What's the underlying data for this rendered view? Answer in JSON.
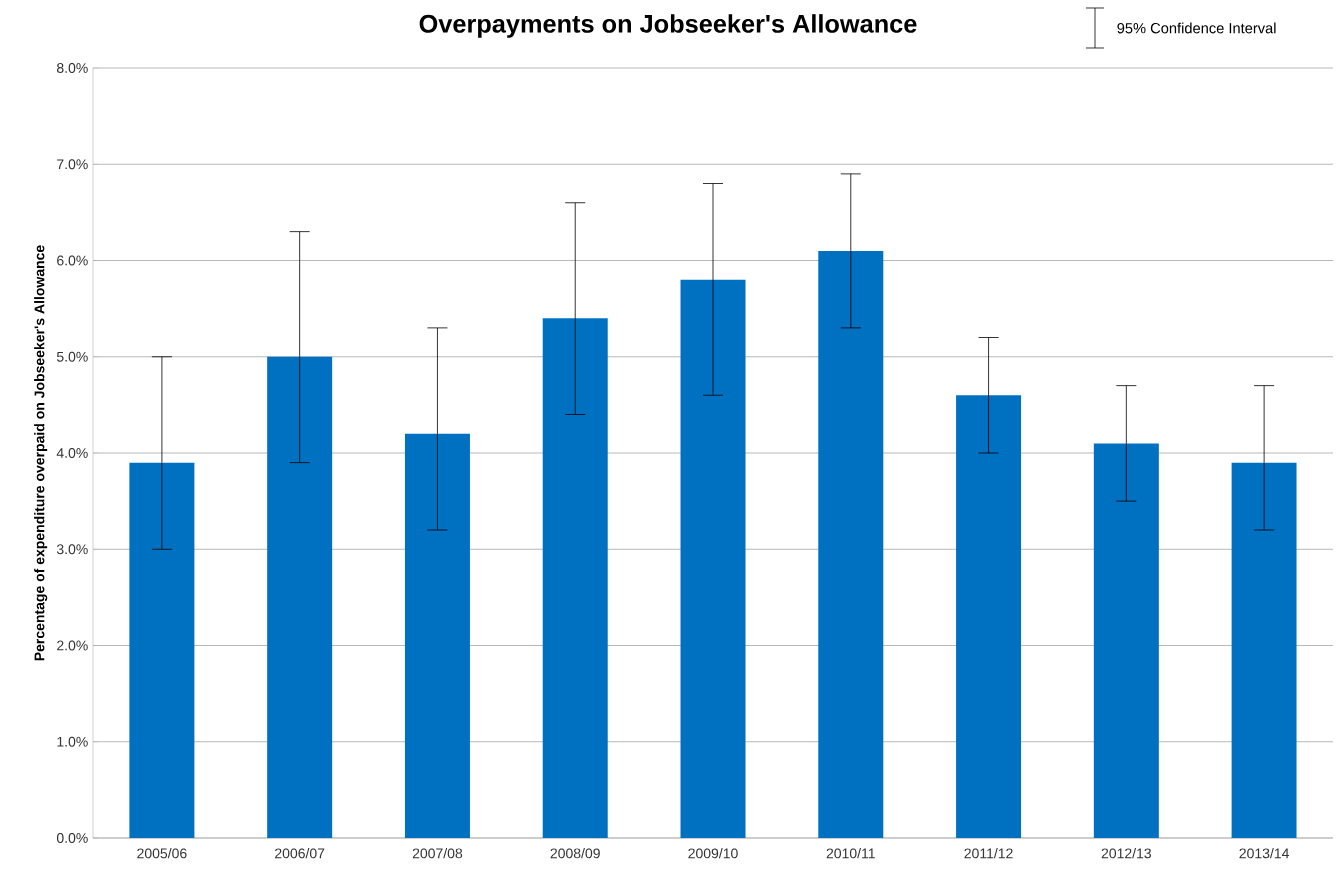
{
  "chart_data": {
    "type": "bar",
    "title": "Overpayments on Jobseeker's Allowance",
    "ylabel": "Percentage of expenditure overpaid on Jobseeker's Allowance",
    "categories": [
      "2005/06",
      "2006/07",
      "2007/08",
      "2008/09",
      "2009/10",
      "2010/11",
      "2011/12",
      "2012/13",
      "2013/14"
    ],
    "values": [
      3.9,
      5.0,
      4.2,
      5.4,
      5.8,
      6.1,
      4.6,
      4.1,
      3.9
    ],
    "errors": [
      [
        3.0,
        5.0
      ],
      [
        3.9,
        6.3
      ],
      [
        3.2,
        5.3
      ],
      [
        4.4,
        6.6
      ],
      [
        4.6,
        6.8
      ],
      [
        5.3,
        6.9
      ],
      [
        4.0,
        5.2
      ],
      [
        3.5,
        4.7
      ],
      [
        3.2,
        4.7
      ]
    ],
    "color": "#0070c0",
    "ylim": [
      0,
      8
    ],
    "yticks": [
      {
        "value": 0,
        "label": "0.0%"
      },
      {
        "value": 1,
        "label": "1.0%"
      },
      {
        "value": 2,
        "label": "2.0%"
      },
      {
        "value": 3,
        "label": "3.0%"
      },
      {
        "value": 4,
        "label": "4.0%"
      },
      {
        "value": 5,
        "label": "5.0%"
      },
      {
        "value": 6,
        "label": "6.0%"
      },
      {
        "value": 7,
        "label": "7.0%"
      },
      {
        "value": 8,
        "label": "8.0%"
      }
    ],
    "grid": "y",
    "annotations": [
      "95% Confidence Interval"
    ]
  }
}
